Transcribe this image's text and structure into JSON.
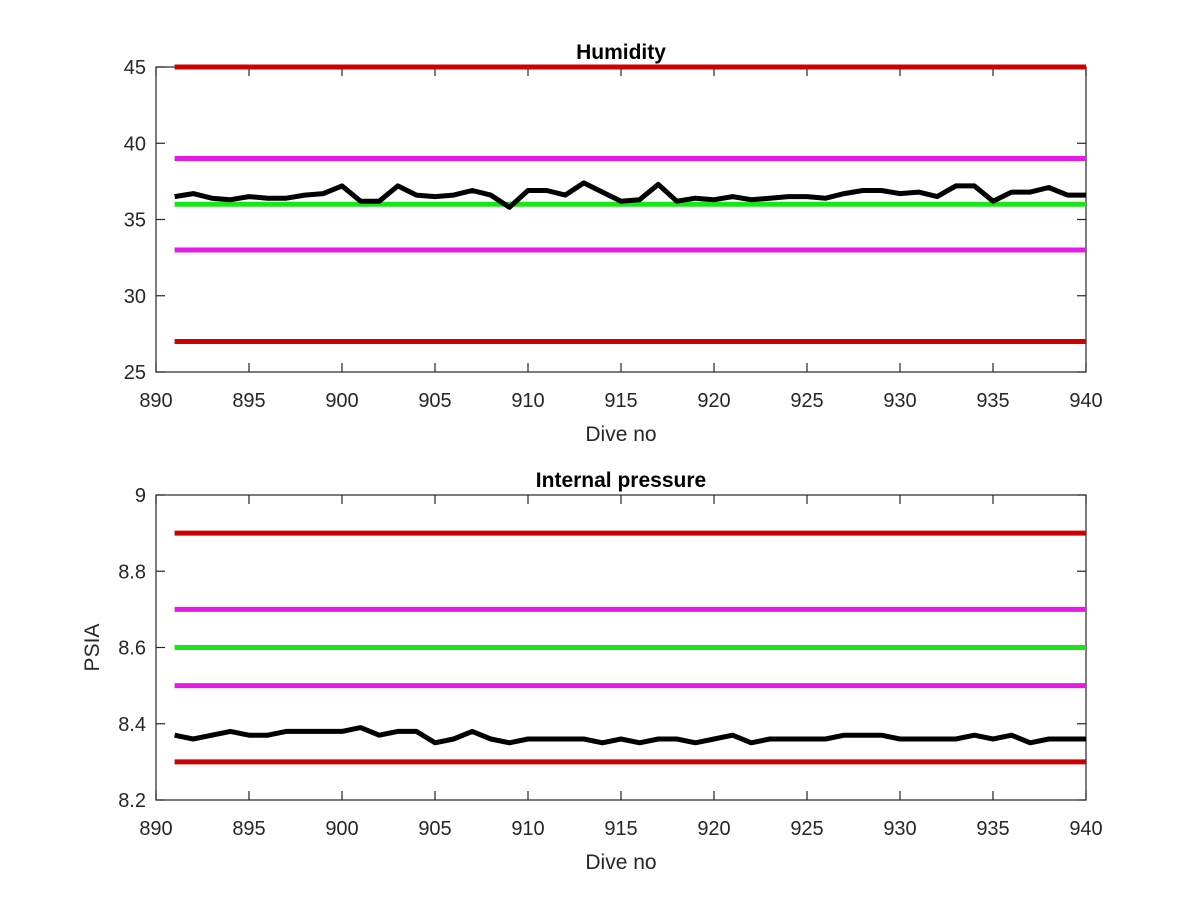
{
  "chart_data": [
    {
      "type": "line",
      "title": "Humidity",
      "xlabel": "Dive no",
      "ylabel": "",
      "xlim": [
        890,
        940
      ],
      "ylim": [
        25,
        45
      ],
      "xticks": [
        890,
        895,
        900,
        905,
        910,
        915,
        920,
        925,
        930,
        935,
        940
      ],
      "yticks": [
        25,
        30,
        35,
        40,
        45
      ],
      "grid": false,
      "reference_lines": [
        {
          "y": 45,
          "x": [
            891,
            940
          ],
          "color": "#cc0000"
        },
        {
          "y": 39,
          "x": [
            891,
            940
          ],
          "color": "#e619e6"
        },
        {
          "y": 36,
          "x": [
            891,
            940
          ],
          "color": "#19e619"
        },
        {
          "y": 33,
          "x": [
            891,
            940
          ],
          "color": "#e619e6"
        },
        {
          "y": 27,
          "x": [
            891,
            940
          ],
          "color": "#cc0000"
        }
      ],
      "series": [
        {
          "color": "#000000",
          "x": [
            891,
            892,
            893,
            894,
            895,
            896,
            897,
            898,
            899,
            900,
            901,
            902,
            903,
            904,
            905,
            906,
            907,
            908,
            909,
            910,
            911,
            912,
            913,
            914,
            915,
            916,
            917,
            918,
            919,
            920,
            921,
            922,
            923,
            924,
            925,
            926,
            927,
            928,
            929,
            930,
            931,
            932,
            933,
            934,
            935,
            936,
            937,
            938,
            939,
            940
          ],
          "values": [
            36.5,
            36.7,
            36.4,
            36.3,
            36.5,
            36.4,
            36.4,
            36.6,
            36.7,
            37.2,
            36.2,
            36.2,
            37.2,
            36.6,
            36.5,
            36.6,
            36.9,
            36.6,
            35.8,
            36.9,
            36.9,
            36.6,
            37.4,
            36.8,
            36.2,
            36.3,
            37.3,
            36.2,
            36.4,
            36.3,
            36.5,
            36.3,
            36.4,
            36.5,
            36.5,
            36.4,
            36.7,
            36.9,
            36.9,
            36.7,
            36.8,
            36.5,
            37.2,
            37.2,
            36.2,
            36.8,
            36.8,
            37.1,
            36.6,
            36.6
          ]
        }
      ]
    },
    {
      "type": "line",
      "title": "Internal pressure",
      "xlabel": "Dive no",
      "ylabel": "PSIA",
      "xlim": [
        890,
        940
      ],
      "ylim": [
        8.2,
        9
      ],
      "xticks": [
        890,
        895,
        900,
        905,
        910,
        915,
        920,
        925,
        930,
        935,
        940
      ],
      "yticks": [
        8.2,
        8.4,
        8.6,
        8.8,
        9
      ],
      "grid": false,
      "reference_lines": [
        {
          "y": 8.9,
          "x": [
            891,
            940
          ],
          "color": "#cc0000"
        },
        {
          "y": 8.7,
          "x": [
            891,
            940
          ],
          "color": "#e619e6"
        },
        {
          "y": 8.6,
          "x": [
            891,
            940
          ],
          "color": "#19e619"
        },
        {
          "y": 8.5,
          "x": [
            891,
            940
          ],
          "color": "#e619e6"
        },
        {
          "y": 8.3,
          "x": [
            891,
            940
          ],
          "color": "#cc0000"
        }
      ],
      "series": [
        {
          "color": "#000000",
          "x": [
            891,
            892,
            893,
            894,
            895,
            896,
            897,
            898,
            899,
            900,
            901,
            902,
            903,
            904,
            905,
            906,
            907,
            908,
            909,
            910,
            911,
            912,
            913,
            914,
            915,
            916,
            917,
            918,
            919,
            920,
            921,
            922,
            923,
            924,
            925,
            926,
            927,
            928,
            929,
            930,
            931,
            932,
            933,
            934,
            935,
            936,
            937,
            938,
            939,
            940
          ],
          "values": [
            8.37,
            8.36,
            8.37,
            8.38,
            8.37,
            8.37,
            8.38,
            8.38,
            8.38,
            8.38,
            8.39,
            8.37,
            8.38,
            8.38,
            8.35,
            8.36,
            8.38,
            8.36,
            8.35,
            8.36,
            8.36,
            8.36,
            8.36,
            8.35,
            8.36,
            8.35,
            8.36,
            8.36,
            8.35,
            8.36,
            8.37,
            8.35,
            8.36,
            8.36,
            8.36,
            8.36,
            8.37,
            8.37,
            8.37,
            8.36,
            8.36,
            8.36,
            8.36,
            8.37,
            8.36,
            8.37,
            8.35,
            8.36,
            8.36,
            8.36
          ]
        }
      ]
    }
  ]
}
